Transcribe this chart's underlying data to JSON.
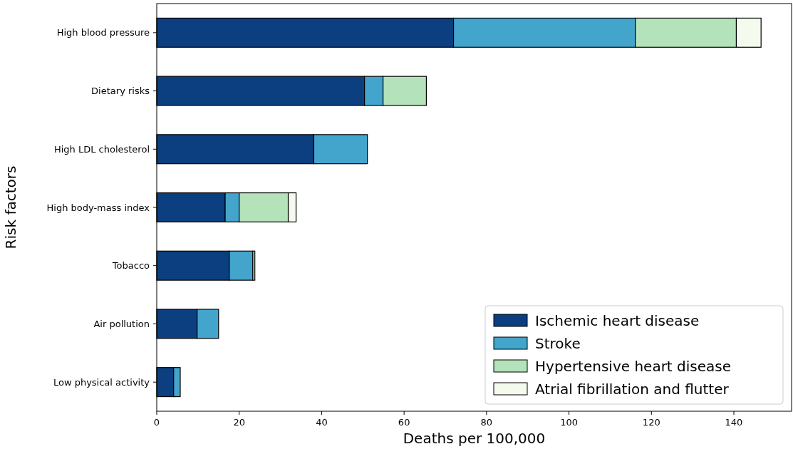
{
  "chart_data": {
    "type": "bar",
    "orientation": "horizontal",
    "stacked": true,
    "xlabel": "Deaths per 100,000",
    "ylabel": "Risk factors",
    "categories": [
      "High blood pressure",
      "Dietary risks",
      "High LDL cholesterol",
      "High body-mass index",
      "Tobacco",
      "Air pollution",
      "Low physical activity"
    ],
    "series": [
      {
        "name": "Ischemic heart disease",
        "color": "#0b3f7f",
        "values": [
          72.0,
          50.4,
          38.1,
          16.6,
          17.6,
          9.8,
          4.1
        ]
      },
      {
        "name": "Stroke",
        "color": "#43a4cc",
        "values": [
          44.1,
          4.5,
          13.0,
          3.4,
          5.7,
          5.2,
          1.6
        ]
      },
      {
        "name": "Hypertensive heart disease",
        "color": "#b4e2ba",
        "values": [
          24.5,
          10.5,
          0,
          11.9,
          0.5,
          0,
          0
        ]
      },
      {
        "name": "Atrial fibrillation and flutter",
        "color": "#f4fbee",
        "values": [
          6.0,
          0,
          0,
          1.9,
          0,
          0,
          0
        ]
      }
    ],
    "xlim": [
      0,
      154
    ],
    "xticks": [
      0,
      20,
      40,
      60,
      80,
      100,
      120,
      140
    ],
    "grid": false,
    "legend": "bottom right"
  }
}
